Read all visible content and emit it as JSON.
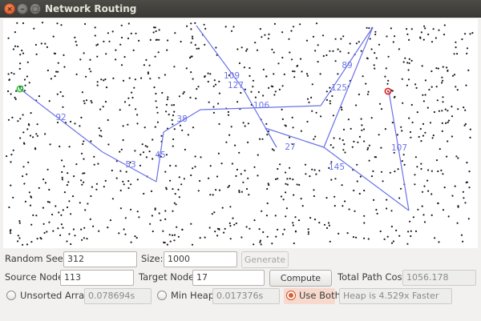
{
  "window": {
    "title": "Network Routing",
    "close_glyph": "×",
    "min_glyph": "–",
    "max_glyph": "▢"
  },
  "graph": {
    "source_color": "#2ec22e",
    "target_color": "#d81f1f",
    "path_color": "#6a72e8",
    "edge_labels": [
      "92",
      "53",
      "45",
      "38",
      "106",
      "109",
      "127",
      "27",
      "145",
      "89",
      "125",
      "107"
    ]
  },
  "controls": {
    "random_seed_label": "Random Seed:",
    "random_seed_value": "312",
    "size_label": "Size:",
    "size_value": "1000",
    "generate_label": "Generate",
    "source_node_label": "Source Node:",
    "source_node_value": "113",
    "target_node_label": "Target Node:",
    "target_node_value": "17",
    "compute_cost_label": "Compute Cost",
    "total_path_cost_label": "Total Path Cost:",
    "total_path_cost_value": "1056.178",
    "unsorted_array_label": "Unsorted Array",
    "unsorted_array_time": "0.078694s",
    "min_heap_label": "Min Heap",
    "min_heap_time": "0.017376s",
    "use_both_label": "Use Both",
    "use_both_result": "Heap is 4.529x Faster",
    "selected_mode": "use_both"
  }
}
